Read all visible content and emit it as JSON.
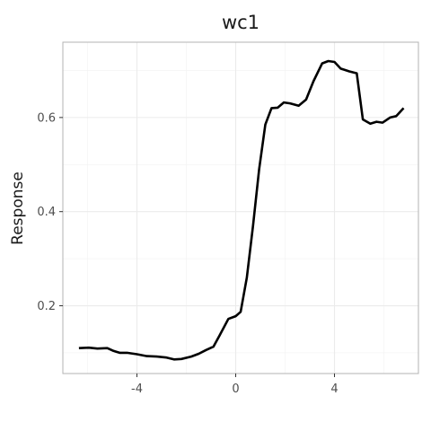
{
  "chart_data": {
    "type": "line",
    "title": "wc1",
    "xlabel": "",
    "ylabel": "Response",
    "xlim": [
      -7.0,
      7.4
    ],
    "ylim": [
      0.056,
      0.76
    ],
    "x_ticks": [
      -4,
      0,
      4
    ],
    "x_tick_labels": [
      "-4",
      "0",
      "4"
    ],
    "y_ticks": [
      0.2,
      0.4,
      0.6
    ],
    "y_tick_labels": [
      "0.2",
      "0.4",
      "0.6"
    ],
    "grid": true,
    "legend": "none",
    "colors": {
      "line": "#000000",
      "grid": "#ebebeb",
      "panel_border": "#b3b3b3"
    },
    "series": [
      {
        "x": [
          -6.35,
          -5.95,
          -5.6,
          -5.2,
          -4.95,
          -4.7,
          -4.4,
          -4.0,
          -3.6,
          -3.2,
          -2.8,
          -2.5,
          -2.2,
          -1.8,
          -1.5,
          -1.2,
          -0.9,
          -0.65,
          -0.3,
          0.0,
          0.2,
          0.45,
          0.7,
          0.95,
          1.2,
          1.45,
          1.7,
          1.95,
          2.2,
          2.55,
          2.85,
          3.15,
          3.5,
          3.75,
          4.0,
          4.25,
          4.6,
          4.9,
          5.15,
          5.45,
          5.7,
          5.95,
          6.25,
          6.5,
          6.8
        ],
        "y": [
          0.11,
          0.111,
          0.109,
          0.11,
          0.104,
          0.1,
          0.1,
          0.097,
          0.093,
          0.092,
          0.09,
          0.086,
          0.087,
          0.092,
          0.098,
          0.106,
          0.113,
          0.137,
          0.172,
          0.178,
          0.187,
          0.26,
          0.37,
          0.49,
          0.585,
          0.62,
          0.621,
          0.632,
          0.63,
          0.625,
          0.638,
          0.677,
          0.715,
          0.72,
          0.718,
          0.704,
          0.698,
          0.694,
          0.596,
          0.587,
          0.591,
          0.589,
          0.6,
          0.603,
          0.62
        ]
      }
    ]
  }
}
